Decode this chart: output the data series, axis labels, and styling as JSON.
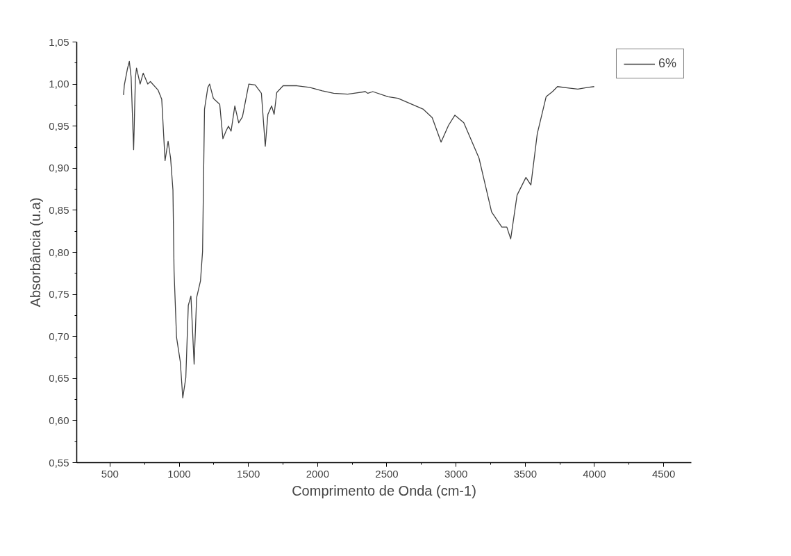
{
  "chart_data": {
    "type": "line",
    "xlabel": "Comprimento de Onda (cm-1)",
    "ylabel": "Absorbância (u.a)",
    "legend": "top right",
    "grid": false,
    "marker": "none",
    "line_style": "solid",
    "xlim": [
      260,
      4700
    ],
    "ylim": [
      0.55,
      1.05
    ],
    "xticks": [
      500,
      1000,
      1500,
      2000,
      2500,
      3000,
      3500,
      4000,
      4500
    ],
    "yticks": [
      {
        "value": 0.55,
        "label": "0,55"
      },
      {
        "value": 0.6,
        "label": "0,60"
      },
      {
        "value": 0.65,
        "label": "0,65"
      },
      {
        "value": 0.7,
        "label": "0,70"
      },
      {
        "value": 0.75,
        "label": "0,75"
      },
      {
        "value": 0.8,
        "label": "0,80"
      },
      {
        "value": 0.85,
        "label": "0,85"
      },
      {
        "value": 0.9,
        "label": "0,90"
      },
      {
        "value": 0.95,
        "label": "0,95"
      },
      {
        "value": 1.0,
        "label": "1,00"
      },
      {
        "value": 1.05,
        "label": "1,05"
      }
    ],
    "series": [
      {
        "name": "6%",
        "color": "#404040",
        "x": [
          598,
          604,
          626,
          640,
          653,
          671,
          684,
          692,
          718,
          740,
          773,
          792,
          847,
          874,
          898,
          920,
          938,
          955,
          963,
          981,
          1008,
          1026,
          1048,
          1066,
          1085,
          1108,
          1126,
          1154,
          1169,
          1183,
          1207,
          1220,
          1247,
          1293,
          1316,
          1338,
          1356,
          1375,
          1402,
          1430,
          1457,
          1503,
          1549,
          1594,
          1622,
          1641,
          1668,
          1686,
          1705,
          1751,
          1851,
          1942,
          2034,
          2116,
          2217,
          2345,
          2363,
          2399,
          2509,
          2581,
          2764,
          2828,
          2892,
          2946,
          2992,
          3056,
          3166,
          3257,
          3331,
          3367,
          3395,
          3441,
          3505,
          3541,
          3587,
          3651,
          3697,
          3733,
          3825,
          3880,
          3953,
          3998
        ],
        "values": [
          0.987,
          0.999,
          1.018,
          1.027,
          1.008,
          0.922,
          1.008,
          1.019,
          1.0,
          1.013,
          1.0,
          1.003,
          0.993,
          0.982,
          0.909,
          0.932,
          0.912,
          0.874,
          0.778,
          0.699,
          0.67,
          0.627,
          0.651,
          0.737,
          0.748,
          0.667,
          0.746,
          0.766,
          0.801,
          0.97,
          0.996,
          1.0,
          0.983,
          0.976,
          0.935,
          0.944,
          0.95,
          0.944,
          0.974,
          0.954,
          0.961,
          1.0,
          0.999,
          0.989,
          0.926,
          0.964,
          0.974,
          0.964,
          0.99,
          0.998,
          0.998,
          0.996,
          0.992,
          0.989,
          0.988,
          0.991,
          0.989,
          0.991,
          0.985,
          0.983,
          0.97,
          0.96,
          0.931,
          0.951,
          0.963,
          0.954,
          0.912,
          0.848,
          0.83,
          0.83,
          0.816,
          0.868,
          0.889,
          0.88,
          0.941,
          0.985,
          0.991,
          0.997,
          0.995,
          0.994,
          0.996,
          0.997
        ]
      }
    ]
  }
}
